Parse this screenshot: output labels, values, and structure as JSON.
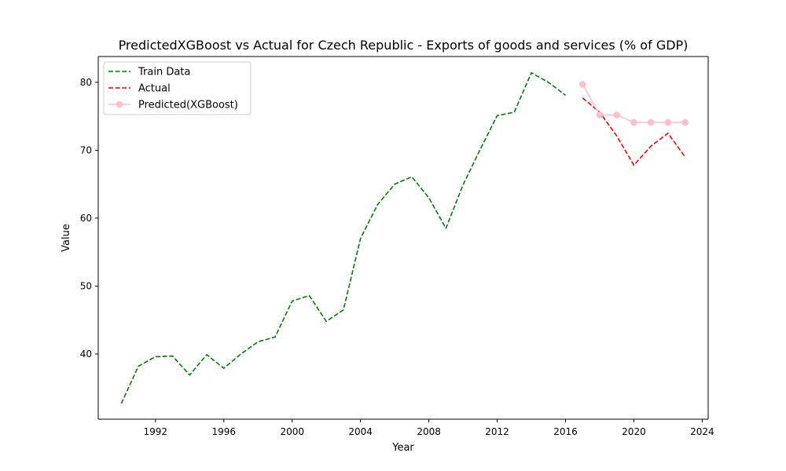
{
  "chart_data": {
    "type": "line",
    "title": "PredictedXGBoost vs Actual for Czech Republic - Exports of goods and services (% of GDP)",
    "xlabel": "Year",
    "ylabel": "Value",
    "xlim": [
      1988.65,
      2024.35
    ],
    "ylim": [
      30.4,
      83.8
    ],
    "x_ticks": [
      1992,
      1996,
      2000,
      2004,
      2008,
      2012,
      2016,
      2020,
      2024
    ],
    "y_ticks": [
      40,
      50,
      60,
      70,
      80
    ],
    "legend_position": "upper left",
    "grid": false,
    "series": [
      {
        "name": "Train Data",
        "color": "#008000",
        "style": "dashed",
        "marker": "none",
        "x": [
          1990,
          1991,
          1992,
          1993,
          1994,
          1995,
          1996,
          1997,
          1998,
          1999,
          2000,
          2001,
          2002,
          2003,
          2004,
          2005,
          2006,
          2007,
          2008,
          2009,
          2010,
          2011,
          2012,
          2013,
          2014,
          2015,
          2016
        ],
        "y": [
          32.7,
          38.2,
          39.6,
          39.7,
          36.9,
          39.9,
          37.9,
          40.0,
          41.8,
          42.5,
          47.8,
          48.6,
          44.8,
          46.5,
          57.0,
          62.0,
          65.0,
          66.1,
          63.0,
          58.5,
          64.9,
          70.1,
          75.1,
          75.6,
          81.4,
          80.0,
          78.1
        ]
      },
      {
        "name": "Actual",
        "color": "#ff0000",
        "style": "dashed",
        "marker": "none",
        "x": [
          2017,
          2018,
          2019,
          2020,
          2021,
          2022,
          2023
        ],
        "y": [
          77.7,
          75.6,
          72.1,
          67.8,
          70.6,
          72.5,
          69.0
        ]
      },
      {
        "name": "Predicted(XGBoost)",
        "color": "#ffc0cb",
        "style": "solid",
        "marker": "circle",
        "x": [
          2017,
          2018,
          2019,
          2020,
          2021,
          2022,
          2023
        ],
        "y": [
          79.7,
          75.2,
          75.2,
          74.1,
          74.1,
          74.1,
          74.1
        ]
      }
    ]
  }
}
